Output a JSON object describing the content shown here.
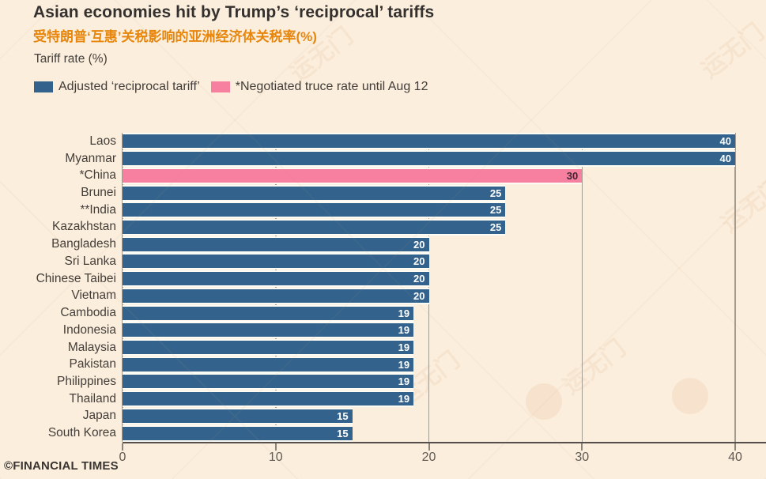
{
  "header": {
    "title": "Asian economies hit by Trump’s ‘reciprocal’ tariffs",
    "subtitle_zh": "受特朗普‘互惠’关税影响的亚洲经济体关税率(%)",
    "unit_label": "Tariff rate (%)"
  },
  "legend": {
    "items": [
      {
        "key": "tariff",
        "label": "Adjusted ‘reciprocal tariff’",
        "color": "#33638D"
      },
      {
        "key": "truce",
        "label": "*Negotiated truce rate until Aug 12",
        "color": "#F77FA0"
      }
    ]
  },
  "chart_data": {
    "type": "bar",
    "orientation": "horizontal",
    "title": "Asian economies hit by Trump’s ‘reciprocal’ tariffs",
    "xlabel": "Tariff rate (%)",
    "xlim": [
      0,
      40
    ],
    "xticks": [
      0,
      10,
      20,
      30,
      40
    ],
    "grid": true,
    "legend_position": "top",
    "categories": [
      "Laos",
      "Myanmar",
      "*China",
      "Brunei",
      "**India",
      "Kazakhstan",
      "Bangladesh",
      "Sri Lanka",
      "Chinese Taibei",
      "Vietnam",
      "Cambodia",
      "Indonesia",
      "Malaysia",
      "Pakistan",
      "Philippines",
      "Thailand",
      "Japan",
      "South Korea"
    ],
    "values": [
      40,
      40,
      30,
      25,
      25,
      25,
      20,
      20,
      20,
      20,
      19,
      19,
      19,
      19,
      19,
      19,
      15,
      15
    ],
    "point_series": [
      "tariff",
      "tariff",
      "truce",
      "tariff",
      "tariff",
      "tariff",
      "tariff",
      "tariff",
      "tariff",
      "tariff",
      "tariff",
      "tariff",
      "tariff",
      "tariff",
      "tariff",
      "tariff",
      "tariff",
      "tariff"
    ]
  },
  "colors": {
    "background": "#FBEEDD",
    "bar_tariff": "#33638D",
    "bar_truce": "#F77FA0",
    "value_on_tariff": "#FFFFFF",
    "value_on_truce": "#3F2734",
    "grid": "#A39B8F",
    "axis": "#55504B",
    "accent_orange": "#E8860B"
  },
  "footer": {
    "credit": "©FINANCIAL TIMES"
  },
  "watermark": {
    "text": "运无门"
  }
}
